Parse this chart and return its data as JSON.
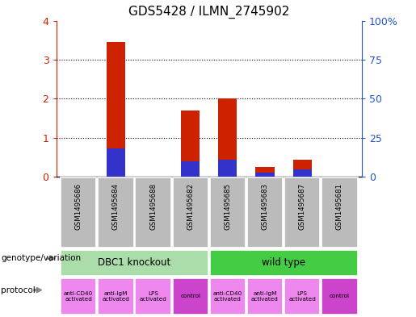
{
  "title": "GDS5428 / ILMN_2745902",
  "samples": [
    "GSM1495686",
    "GSM1495684",
    "GSM1495688",
    "GSM1495682",
    "GSM1495685",
    "GSM1495683",
    "GSM1495687",
    "GSM1495681"
  ],
  "count_values": [
    0.0,
    3.45,
    0.0,
    1.7,
    2.0,
    0.25,
    0.45,
    0.0
  ],
  "percentile_values": [
    0.0,
    18.0,
    0.0,
    10.0,
    11.0,
    3.0,
    5.0,
    0.0
  ],
  "ylim_left": [
    0,
    4
  ],
  "ylim_right": [
    0,
    100
  ],
  "yticks_left": [
    0,
    1,
    2,
    3,
    4
  ],
  "yticks_right": [
    0,
    25,
    50,
    75,
    100
  ],
  "yticklabels_right": [
    "0",
    "25",
    "50",
    "75",
    "100%"
  ],
  "bar_color_count": "#cc2200",
  "bar_color_percentile": "#3333cc",
  "bar_width": 0.5,
  "genotype_groups": [
    {
      "label": "DBC1 knockout",
      "start": 0,
      "end": 3,
      "color": "#aaddaa"
    },
    {
      "label": "wild type",
      "start": 4,
      "end": 7,
      "color": "#44cc44"
    }
  ],
  "protocols": [
    "anti-CD40\nactivated",
    "anti-IgM\nactivated",
    "LPS\nactivated",
    "control",
    "anti-CD40\nactivated",
    "anti-IgM\nactivated",
    "LPS\nactivated",
    "control"
  ],
  "protocol_colors": [
    "#ee88ee",
    "#ee88ee",
    "#ee88ee",
    "#cc44cc",
    "#ee88ee",
    "#ee88ee",
    "#ee88ee",
    "#cc44cc"
  ],
  "left_label_color": "#cc2200",
  "right_label_color": "#2255cc",
  "bg_color": "#ffffff",
  "sample_box_color": "#bbbbbb"
}
